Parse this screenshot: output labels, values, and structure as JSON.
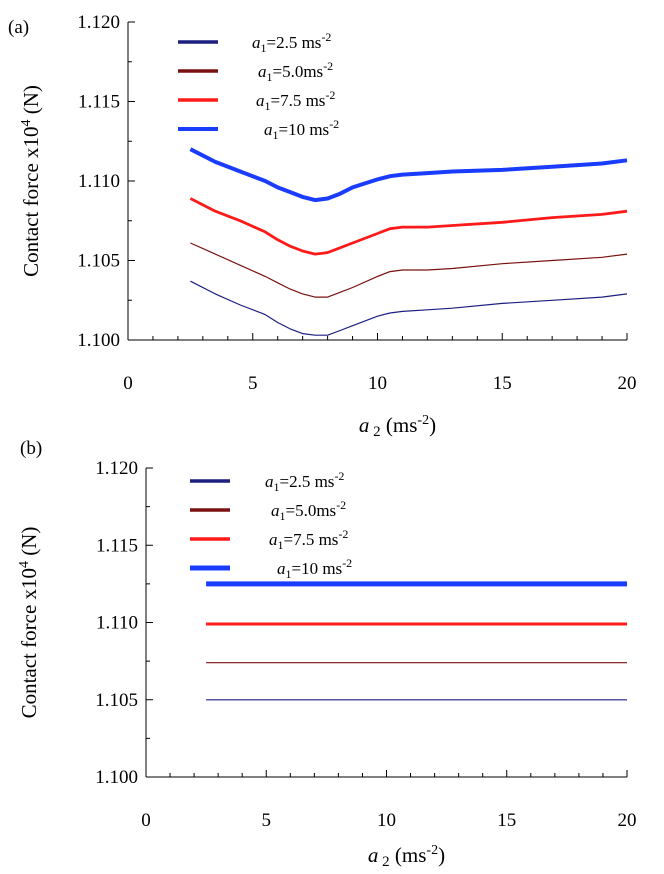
{
  "chart_data": [
    {
      "type": "line",
      "panel_label": "(a)",
      "xlabel_var": "a",
      "xlabel_sub": "2",
      "xlabel_unit": "(ms",
      "xlabel_exp": "-2",
      "xlabel_close": ")",
      "ylabel_main": "Contact force x10",
      "ylabel_exp": "4",
      "ylabel_unit": " (N)",
      "xlim": [
        0,
        20
      ],
      "ylim": [
        1.1,
        1.12
      ],
      "x_ticks": [
        "0",
        "5",
        "10",
        "15",
        "20"
      ],
      "y_ticks": [
        "1.100",
        "1.105",
        "1.110",
        "1.115",
        "1.120"
      ],
      "legend_position": "top-left",
      "series": [
        {
          "var": "a",
          "sub": "1",
          "value": "=2.5 ms",
          "exp": "-2",
          "color": "#1c1f80",
          "width": 1.2,
          "points": [
            [
              2.5,
              1.1037
            ],
            [
              3.5,
              1.1029
            ],
            [
              4.5,
              1.1022
            ],
            [
              5.5,
              1.1016
            ],
            [
              6.0,
              1.1011
            ],
            [
              6.5,
              1.1007
            ],
            [
              7.0,
              1.1004
            ],
            [
              7.5,
              1.1003
            ],
            [
              8.0,
              1.1003
            ],
            [
              8.5,
              1.1006
            ],
            [
              9.0,
              1.1009
            ],
            [
              10.0,
              1.1015
            ],
            [
              10.5,
              1.1017
            ],
            [
              11.0,
              1.1018
            ],
            [
              12.0,
              1.1019
            ],
            [
              13.0,
              1.102
            ],
            [
              15.0,
              1.1023
            ],
            [
              17.0,
              1.1025
            ],
            [
              19.0,
              1.1027
            ],
            [
              20.0,
              1.1029
            ]
          ]
        },
        {
          "var": "a",
          "sub": "1",
          "value": "=5.0ms",
          "exp": "-2",
          "color": "#7a1010",
          "width": 1.2,
          "points": [
            [
              2.5,
              1.1061
            ],
            [
              3.5,
              1.1054
            ],
            [
              4.5,
              1.1047
            ],
            [
              5.5,
              1.104
            ],
            [
              6.0,
              1.1036
            ],
            [
              6.5,
              1.1032
            ],
            [
              7.0,
              1.1029
            ],
            [
              7.5,
              1.1027
            ],
            [
              8.0,
              1.1027
            ],
            [
              8.5,
              1.103
            ],
            [
              9.0,
              1.1033
            ],
            [
              10.0,
              1.104
            ],
            [
              10.5,
              1.1043
            ],
            [
              11.0,
              1.1044
            ],
            [
              12.0,
              1.1044
            ],
            [
              13.0,
              1.1045
            ],
            [
              15.0,
              1.1048
            ],
            [
              17.0,
              1.105
            ],
            [
              19.0,
              1.1052
            ],
            [
              20.0,
              1.1054
            ]
          ]
        },
        {
          "var": "a",
          "sub": "1",
          "value": "=7.5 ms",
          "exp": "-2",
          "color": "#ff1a1a",
          "width": 2.8,
          "points": [
            [
              2.5,
              1.1089
            ],
            [
              3.5,
              1.1081
            ],
            [
              4.5,
              1.1075
            ],
            [
              5.5,
              1.1068
            ],
            [
              6.0,
              1.1063
            ],
            [
              6.5,
              1.1059
            ],
            [
              7.0,
              1.1056
            ],
            [
              7.5,
              1.1054
            ],
            [
              8.0,
              1.1055
            ],
            [
              8.5,
              1.1058
            ],
            [
              9.0,
              1.1061
            ],
            [
              10.0,
              1.1067
            ],
            [
              10.5,
              1.107
            ],
            [
              11.0,
              1.1071
            ],
            [
              12.0,
              1.1071
            ],
            [
              13.0,
              1.1072
            ],
            [
              15.0,
              1.1074
            ],
            [
              17.0,
              1.1077
            ],
            [
              19.0,
              1.1079
            ],
            [
              20.0,
              1.1081
            ]
          ]
        },
        {
          "var": "a",
          "sub": "1",
          "value": "=10 ms",
          "exp": "-2",
          "color": "#1a3cff",
          "width": 4,
          "points": [
            [
              2.5,
              1.112
            ],
            [
              3.5,
              1.1112
            ],
            [
              4.5,
              1.1106
            ],
            [
              5.5,
              1.11
            ],
            [
              6.0,
              1.1096
            ],
            [
              6.5,
              1.1093
            ],
            [
              7.0,
              1.109
            ],
            [
              7.5,
              1.1088
            ],
            [
              8.0,
              1.1089
            ],
            [
              8.5,
              1.1092
            ],
            [
              9.0,
              1.1096
            ],
            [
              10.0,
              1.1101
            ],
            [
              10.5,
              1.1103
            ],
            [
              11.0,
              1.1104
            ],
            [
              12.0,
              1.1105
            ],
            [
              13.0,
              1.1106
            ],
            [
              15.0,
              1.1107
            ],
            [
              17.0,
              1.1109
            ],
            [
              19.0,
              1.1111
            ],
            [
              20.0,
              1.1113
            ]
          ]
        }
      ]
    },
    {
      "type": "line",
      "panel_label": "(b)",
      "xlabel_var": "a",
      "xlabel_sub": "2",
      "xlabel_unit": "(ms",
      "xlabel_exp": "-2",
      "xlabel_close": ")",
      "ylabel_main": "Contact force x10",
      "ylabel_exp": "4",
      "ylabel_unit": " (N)",
      "xlim": [
        0,
        20
      ],
      "ylim": [
        1.1,
        1.12
      ],
      "x_ticks": [
        "0",
        "5",
        "10",
        "15",
        "20"
      ],
      "y_ticks": [
        "1.100",
        "1.105",
        "1.110",
        "1.115",
        "1.120"
      ],
      "legend_position": "top-left",
      "series": [
        {
          "var": "a",
          "sub": "1",
          "value": "=2.5 ms",
          "exp": "-2",
          "color": "#1c1f80",
          "width": 1.2,
          "points": [
            [
              2.5,
              1.105
            ],
            [
              20.0,
              1.105
            ]
          ]
        },
        {
          "var": "a",
          "sub": "1",
          "value": "=5.0ms",
          "exp": "-2",
          "color": "#7a1010",
          "width": 1.2,
          "points": [
            [
              2.5,
              1.1074
            ],
            [
              20.0,
              1.1074
            ]
          ]
        },
        {
          "var": "a",
          "sub": "1",
          "value": "=7.5 ms",
          "exp": "-2",
          "color": "#ff1a1a",
          "width": 3,
          "points": [
            [
              2.5,
              1.1099
            ],
            [
              20.0,
              1.1099
            ]
          ]
        },
        {
          "var": "a",
          "sub": "1",
          "value": "=10 ms",
          "exp": "-2",
          "color": "#1a3cff",
          "width": 5,
          "points": [
            [
              2.5,
              1.1125
            ],
            [
              20.0,
              1.1125
            ]
          ]
        }
      ]
    }
  ]
}
